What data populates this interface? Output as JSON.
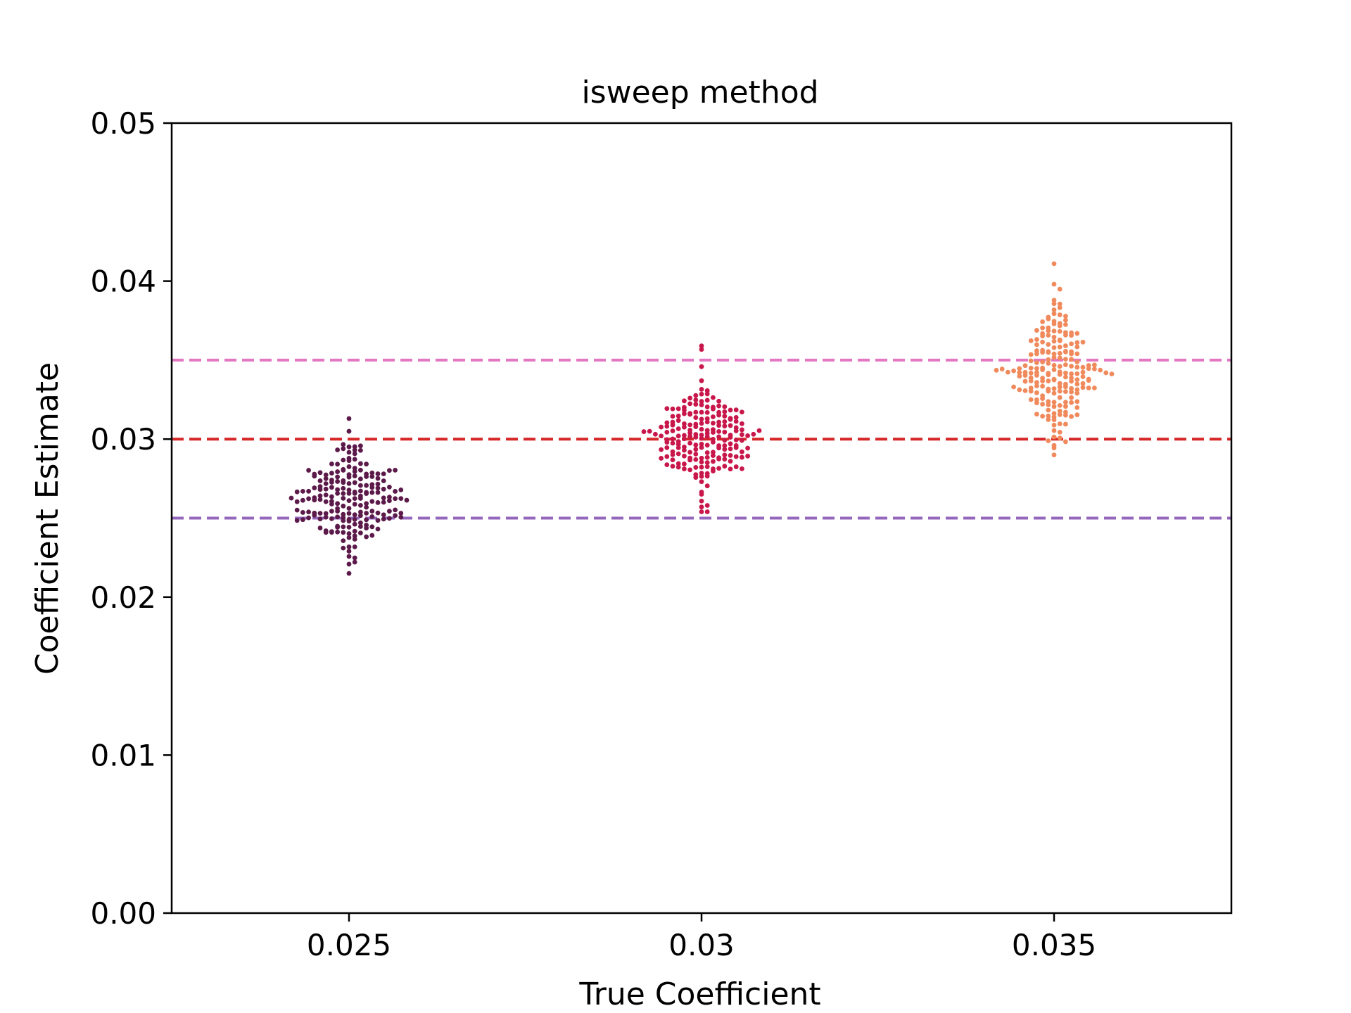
{
  "chart_data": {
    "type": "scatter",
    "subtype": "swarm",
    "title": "isweep method",
    "xlabel": "True Coefficient",
    "ylabel": "Coefficient Estimate",
    "categories": [
      "0.025",
      "0.03",
      "0.035"
    ],
    "ylim": [
      0.0,
      0.05
    ],
    "yticks": [
      "0.00",
      "0.01",
      "0.02",
      "0.03",
      "0.04",
      "0.05"
    ],
    "ytick_values": [
      0.0,
      0.01,
      0.02,
      0.03,
      0.04,
      0.05
    ],
    "grid": false,
    "reference_lines": [
      {
        "y": 0.035,
        "color": "#e377c2",
        "style": "dashed"
      },
      {
        "y": 0.03,
        "color": "#d62728",
        "style": "dashed"
      },
      {
        "y": 0.025,
        "color": "#9467bd",
        "style": "dashed"
      }
    ],
    "series": [
      {
        "category": "0.025",
        "color": "#5c1a4a",
        "n": 200,
        "center": 0.0262,
        "spread": 0.0017,
        "min": 0.0215,
        "max": 0.0313
      },
      {
        "category": "0.03",
        "color": "#c8174a",
        "n": 200,
        "center": 0.0302,
        "spread": 0.0017,
        "min": 0.0254,
        "max": 0.0359
      },
      {
        "category": "0.035",
        "color": "#f08a5d",
        "n": 200,
        "center": 0.0344,
        "spread": 0.002,
        "min": 0.029,
        "max": 0.0411
      }
    ]
  }
}
